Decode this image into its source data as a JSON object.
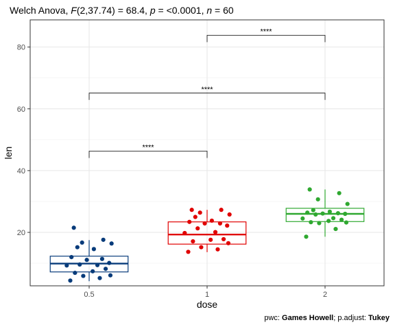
{
  "header": {
    "title_prefix": "Welch Anova, ",
    "stat_symbol": "F",
    "stat_args": "(2,37.74) = 68.4, ",
    "p_symbol": "p",
    "p_value": " = <0.0001, ",
    "n_symbol": "n",
    "n_value": " = 60"
  },
  "caption": {
    "pwc_label": "pwc: ",
    "pwc_method": "Games Howell",
    "separator": "; p.adjust: ",
    "adjust_method": "Tukey"
  },
  "chart_data": {
    "type": "box",
    "xlabel": "dose",
    "ylabel": "len",
    "categories": [
      "0.5",
      "1",
      "2"
    ],
    "ylim": [
      2.7,
      88.8
    ],
    "yticks": [
      20,
      40,
      60,
      80
    ],
    "grid": true,
    "colors": [
      "#073B7A",
      "#E00000",
      "#2FA830"
    ],
    "series": [
      {
        "category": "0.5",
        "box": {
          "min": 4.2,
          "q1": 7.2,
          "median": 9.9,
          "q3": 12.3,
          "max": 17.5
        },
        "points": [
          4.4,
          5.2,
          5.9,
          6.1,
          6.9,
          7.4,
          8.2,
          9.3,
          9.4,
          9.6,
          10.1,
          11.1,
          11.4,
          12.0,
          14.6,
          15.2,
          16.4,
          16.7,
          17.6,
          21.5
        ]
      },
      {
        "category": "1",
        "box": {
          "min": 13.6,
          "q1": 16.2,
          "median": 19.3,
          "q3": 23.4,
          "max": 27.3
        },
        "points": [
          13.7,
          14.5,
          15.2,
          16.5,
          17.1,
          17.6,
          17.8,
          19.8,
          20.1,
          21.3,
          22.2,
          22.9,
          22.9,
          23.4,
          23.8,
          25.0,
          25.8,
          26.4,
          27.3,
          27.3
        ]
      },
      {
        "category": "2",
        "box": {
          "min": 18.6,
          "q1": 23.5,
          "median": 26.0,
          "q3": 27.8,
          "max": 33.9
        },
        "points": [
          18.6,
          21.1,
          23.0,
          23.2,
          23.3,
          23.7,
          24.1,
          24.5,
          24.6,
          25.8,
          26.0,
          26.1,
          26.2,
          26.4,
          26.7,
          27.2,
          29.2,
          30.7,
          32.7,
          33.9
        ]
      }
    ],
    "comparisons": [
      {
        "from": "0.5",
        "to": "1",
        "y": 46.3,
        "label": "****"
      },
      {
        "from": "0.5",
        "to": "2",
        "y": 65.1,
        "label": "****"
      },
      {
        "from": "1",
        "to": "2",
        "y": 83.8,
        "label": "****"
      }
    ]
  }
}
